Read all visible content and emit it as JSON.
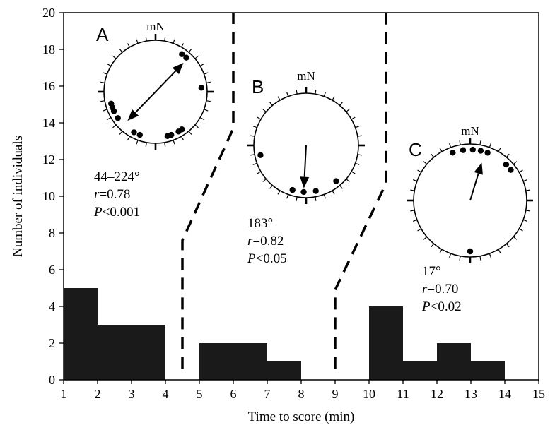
{
  "chart_data": {
    "type": "bar",
    "xlabel": "Time to score (min)",
    "ylabel": "Number of individuals",
    "xlim": [
      1,
      15
    ],
    "ylim": [
      0,
      20
    ],
    "x_ticks": [
      1,
      2,
      3,
      4,
      5,
      6,
      7,
      8,
      9,
      10,
      11,
      12,
      13,
      14,
      15
    ],
    "y_ticks": [
      0,
      2,
      4,
      6,
      8,
      10,
      12,
      14,
      16,
      18,
      20
    ],
    "bars": [
      {
        "start": 1,
        "end": 2,
        "value": 5
      },
      {
        "start": 2,
        "end": 3,
        "value": 3
      },
      {
        "start": 3,
        "end": 4,
        "value": 3
      },
      {
        "start": 5,
        "end": 6,
        "value": 2
      },
      {
        "start": 6,
        "end": 7,
        "value": 2
      },
      {
        "start": 7,
        "end": 8,
        "value": 1
      },
      {
        "start": 10,
        "end": 11,
        "value": 4
      },
      {
        "start": 11,
        "end": 12,
        "value": 1
      },
      {
        "start": 12,
        "end": 13,
        "value": 2
      },
      {
        "start": 13,
        "end": 14,
        "value": 1
      }
    ],
    "bar_color": "#1a1a1a",
    "dashed_dividers": [
      {
        "points": [
          [
            4.5,
            0.6
          ],
          [
            4.5,
            7.6
          ],
          [
            6,
            13.7
          ],
          [
            6,
            20
          ]
        ]
      },
      {
        "points": [
          [
            9,
            0.6
          ],
          [
            9,
            4.9
          ],
          [
            10.5,
            10.7
          ],
          [
            10.5,
            20
          ]
        ]
      }
    ],
    "circular_panels": [
      {
        "letter": "A",
        "north_label": "mN",
        "stats": {
          "angle": "44–224°",
          "r": "=0.78",
          "p": "<0.001"
        },
        "bidirectional": true,
        "mean_angle_deg": 44,
        "r_value": 0.78,
        "points_deg": [
          35,
          42,
          85,
          145,
          150,
          160,
          165,
          200,
          208,
          235,
          245,
          250,
          255
        ]
      },
      {
        "letter": "B",
        "north_label": "mN",
        "stats": {
          "angle": "183°",
          "r": "=0.82",
          "p": "<0.05"
        },
        "bidirectional": false,
        "mean_angle_deg": 183,
        "r_value": 0.82,
        "points_deg": [
          140,
          168,
          183,
          197,
          258
        ]
      },
      {
        "letter": "C",
        "north_label": "mN",
        "stats": {
          "angle": "17°",
          "r": "=0.70",
          "p": "<0.02"
        },
        "bidirectional": false,
        "mean_angle_deg": 17,
        "r_value": 0.7,
        "points_deg": [
          -20,
          -8,
          3,
          12,
          20,
          45,
          53,
          180
        ]
      }
    ]
  }
}
